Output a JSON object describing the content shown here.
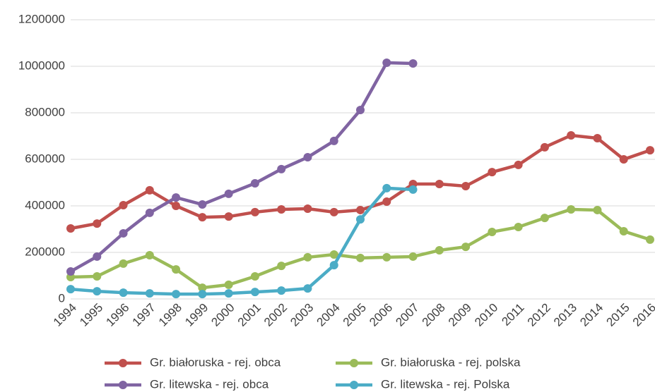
{
  "chart_data": {
    "type": "line",
    "categories": [
      "1994",
      "1995",
      "1996",
      "1997",
      "1998",
      "1999",
      "2000",
      "2001",
      "2002",
      "2003",
      "2004",
      "2005",
      "2006",
      "2007",
      "2008",
      "2009",
      "2010",
      "2011",
      "2012",
      "2013",
      "2014",
      "2015",
      "2016"
    ],
    "series": [
      {
        "name": "Gr. białoruska - rej. obca",
        "color": "#c0504d",
        "values": [
          303000,
          324000,
          403000,
          467000,
          400000,
          351000,
          354000,
          373000,
          385000,
          388000,
          373000,
          382000,
          418000,
          494000,
          494000,
          485000,
          545000,
          576000,
          652000,
          703000,
          691000,
          600000,
          639000
        ]
      },
      {
        "name": "Gr. białoruska - rej. polska",
        "color": "#9bbb59",
        "values": [
          94000,
          97000,
          152000,
          188000,
          127000,
          48000,
          61000,
          97000,
          142000,
          179000,
          191000,
          176000,
          179000,
          182000,
          209000,
          224000,
          288000,
          309000,
          348000,
          385000,
          382000,
          291000,
          255000
        ]
      },
      {
        "name": "Gr. litewska - rej. obca",
        "color": "#8064a2",
        "values": [
          118000,
          182000,
          282000,
          370000,
          436000,
          406000,
          452000,
          497000,
          558000,
          609000,
          679000,
          812000,
          1015000,
          1012000,
          null,
          null,
          null,
          null,
          null,
          null,
          null,
          null,
          null
        ]
      },
      {
        "name": "Gr. litewska - rej. Polska",
        "color": "#4bacc6",
        "values": [
          42000,
          33000,
          27000,
          24000,
          21000,
          21000,
          24000,
          30000,
          36000,
          45000,
          145000,
          342000,
          476000,
          470000,
          null,
          null,
          null,
          null,
          null,
          null,
          null,
          null,
          null
        ]
      }
    ],
    "ylim": [
      0,
      1200000
    ],
    "yticks": [
      0,
      200000,
      400000,
      600000,
      800000,
      1000000,
      1200000
    ],
    "grid": true
  }
}
